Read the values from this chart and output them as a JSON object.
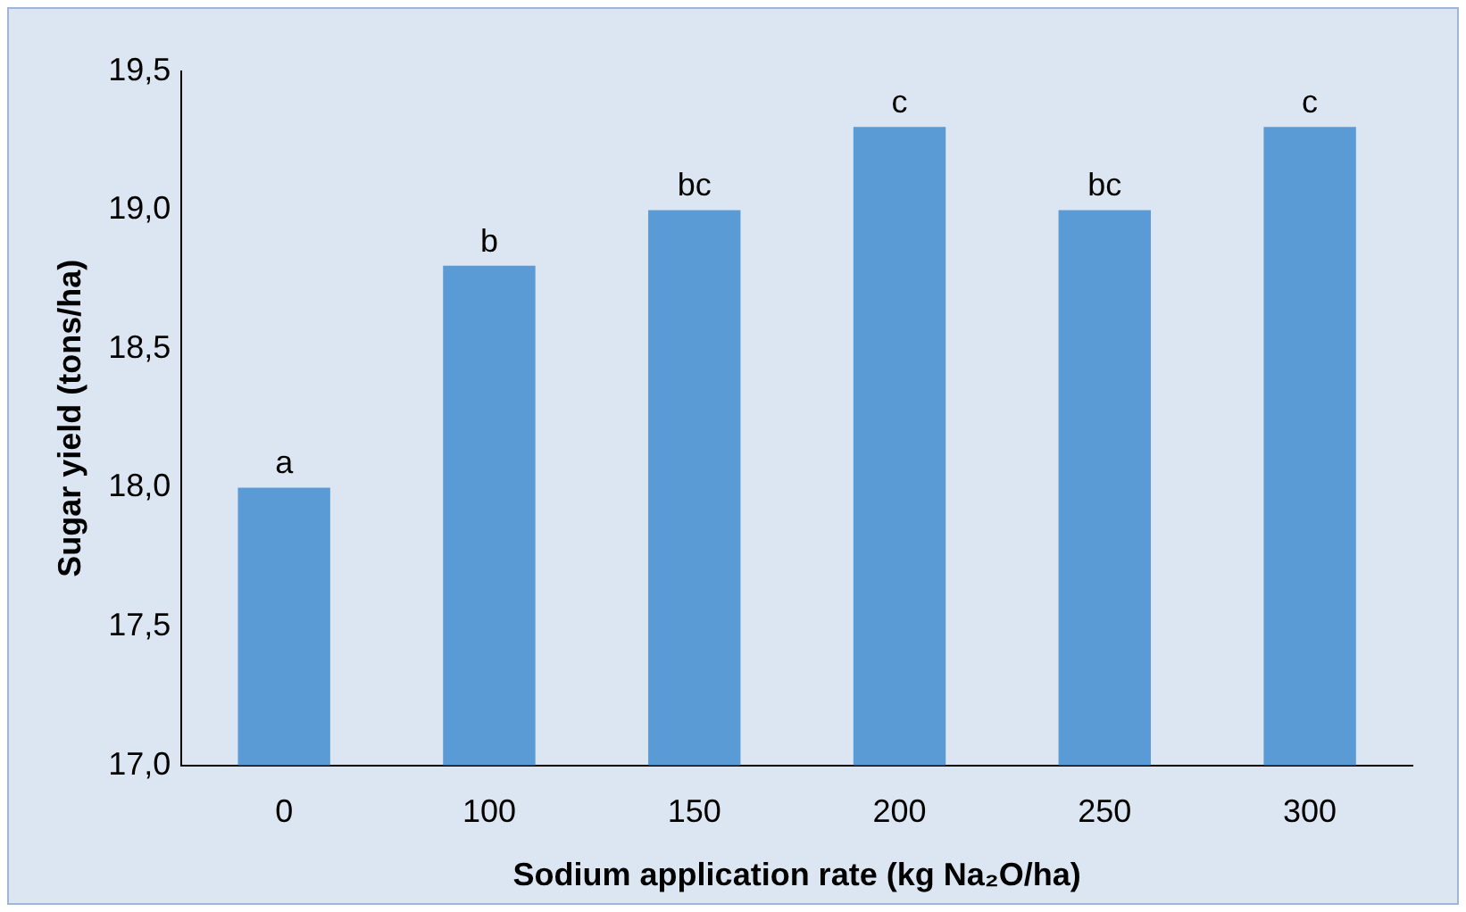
{
  "chart_data": {
    "type": "bar",
    "xlabel": "Sodium application rate (kg Na₂O/ha)",
    "ylabel": "Sugar yield (tons/ha)",
    "categories": [
      "0",
      "100",
      "150",
      "200",
      "250",
      "300"
    ],
    "values": [
      18.0,
      18.8,
      19.0,
      19.3,
      19.0,
      19.3
    ],
    "color": "#5b9bd5",
    "ylim": [
      17,
      19.5
    ],
    "yticks": [
      {
        "value": 17,
        "label": "17,0"
      },
      {
        "value": 17.5,
        "label": "17,5"
      },
      {
        "value": 18,
        "label": "18,0"
      },
      {
        "value": 18.5,
        "label": "18,5"
      },
      {
        "value": 19,
        "label": "19,0"
      },
      {
        "value": 19.5,
        "label": "19,5"
      }
    ],
    "grid": false,
    "legend": false,
    "annotations": [
      {
        "text": "a",
        "x": "0",
        "y": 18.0
      },
      {
        "text": "b",
        "x": "100",
        "y": 18.8
      },
      {
        "text": "bc",
        "x": "150",
        "y": 19.0
      },
      {
        "text": "c",
        "x": "200",
        "y": 19.3
      },
      {
        "text": "bc",
        "x": "250",
        "y": 19.0
      },
      {
        "text": "c",
        "x": "300",
        "y": 19.3
      }
    ]
  }
}
